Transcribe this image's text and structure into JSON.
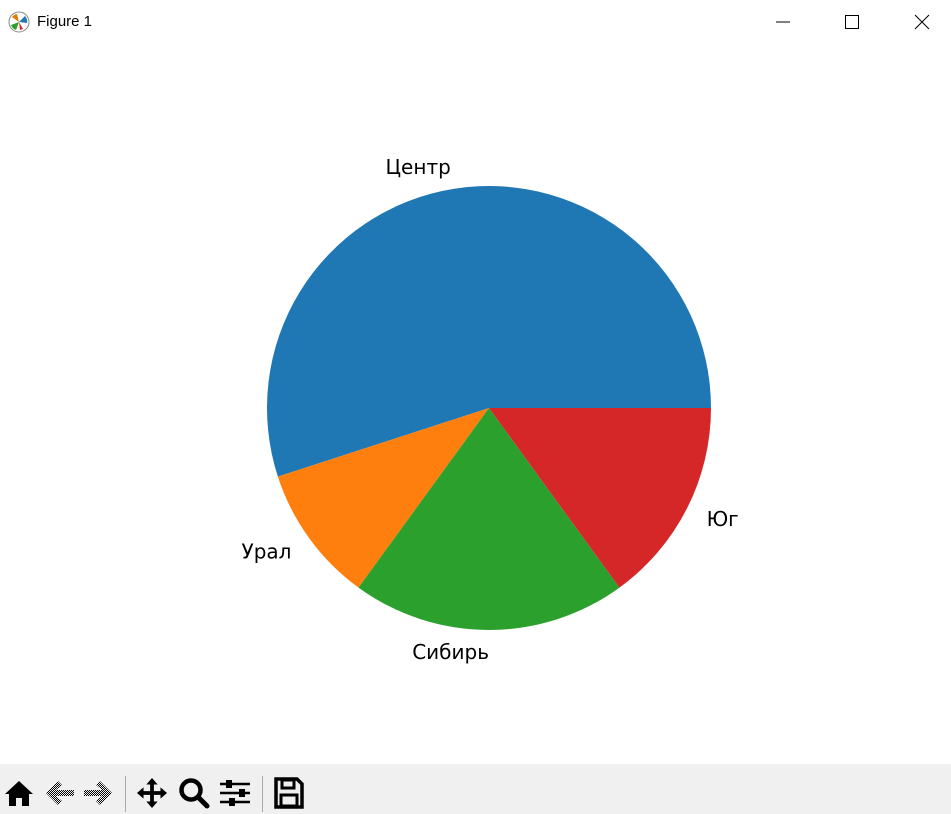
{
  "window": {
    "title": "Figure 1"
  },
  "toolbar": {
    "buttons": [
      "home-icon",
      "back-icon",
      "forward-icon",
      "pan-icon",
      "zoom-icon",
      "configure-subplots-icon",
      "save-icon"
    ]
  },
  "chart_data": {
    "type": "pie",
    "labels": [
      "Центр",
      "Урал",
      "Сибирь",
      "Юг"
    ],
    "values": [
      55,
      10,
      20,
      15
    ],
    "colors": [
      "#1f77b4",
      "#ff7f0e",
      "#2ca02c",
      "#d62728"
    ],
    "start_angle": 0,
    "direction": "counterclockwise"
  }
}
